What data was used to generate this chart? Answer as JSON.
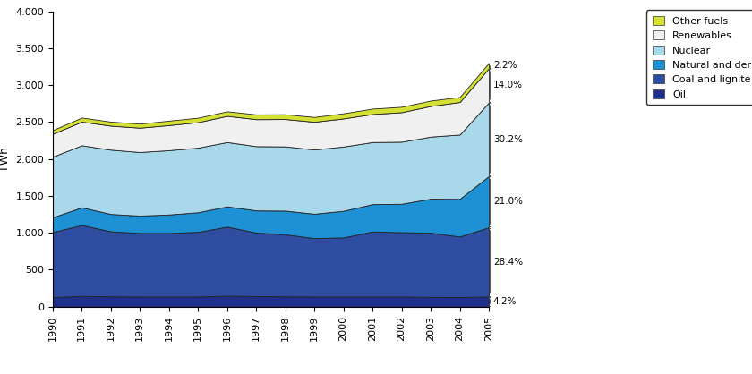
{
  "years": [
    1990,
    1991,
    1992,
    1993,
    1994,
    1995,
    1996,
    1997,
    1998,
    1999,
    2000,
    2001,
    2002,
    2003,
    2004,
    2005
  ],
  "oil": [
    130,
    145,
    140,
    138,
    138,
    138,
    148,
    143,
    140,
    138,
    138,
    138,
    138,
    132,
    130,
    138
  ],
  "coal_lignite": [
    880,
    960,
    880,
    860,
    860,
    875,
    935,
    860,
    840,
    790,
    800,
    880,
    870,
    870,
    820,
    937
  ],
  "natural_gas": [
    200,
    240,
    235,
    235,
    250,
    265,
    275,
    300,
    320,
    330,
    360,
    370,
    385,
    460,
    510,
    693
  ],
  "nuclear": [
    820,
    840,
    870,
    860,
    870,
    875,
    870,
    870,
    870,
    870,
    870,
    840,
    840,
    840,
    870,
    997
  ],
  "renewables": [
    310,
    320,
    325,
    330,
    340,
    345,
    355,
    365,
    370,
    375,
    380,
    380,
    400,
    415,
    440,
    462
  ],
  "other_fuels": [
    50,
    55,
    55,
    55,
    60,
    60,
    62,
    65,
    65,
    65,
    70,
    73,
    73,
    73,
    68,
    73
  ],
  "colors": {
    "oil": "#1f2f8c",
    "coal_lignite": "#2e4da0",
    "natural_gas": "#1e90d4",
    "nuclear": "#a8d8ea",
    "renewables": "#f0f0f0",
    "other_fuels": "#d4e034"
  },
  "ylabel": "TWh",
  "ylim": [
    0,
    4000
  ],
  "yticks": [
    0,
    500,
    1000,
    1500,
    2000,
    2500,
    3000,
    3500,
    4000
  ],
  "ytick_labels": [
    "0",
    "500",
    "1.000",
    "1.500",
    "2.000",
    "2.500",
    "3.000",
    "3.500",
    "4.000"
  ],
  "pcts": [
    "4.2%",
    "28.4%",
    "21.0%",
    "30.2%",
    "14.0%",
    "2.2%"
  ],
  "legend_labels": [
    "Other fuels",
    "Renewables",
    "Nuclear",
    "Natural and derived gas",
    "Coal and lignite",
    "Oil"
  ],
  "legend_colors": [
    "#d4e034",
    "#f0f0f0",
    "#a8d8ea",
    "#1e90d4",
    "#2e4da0",
    "#1f2f8c"
  ]
}
